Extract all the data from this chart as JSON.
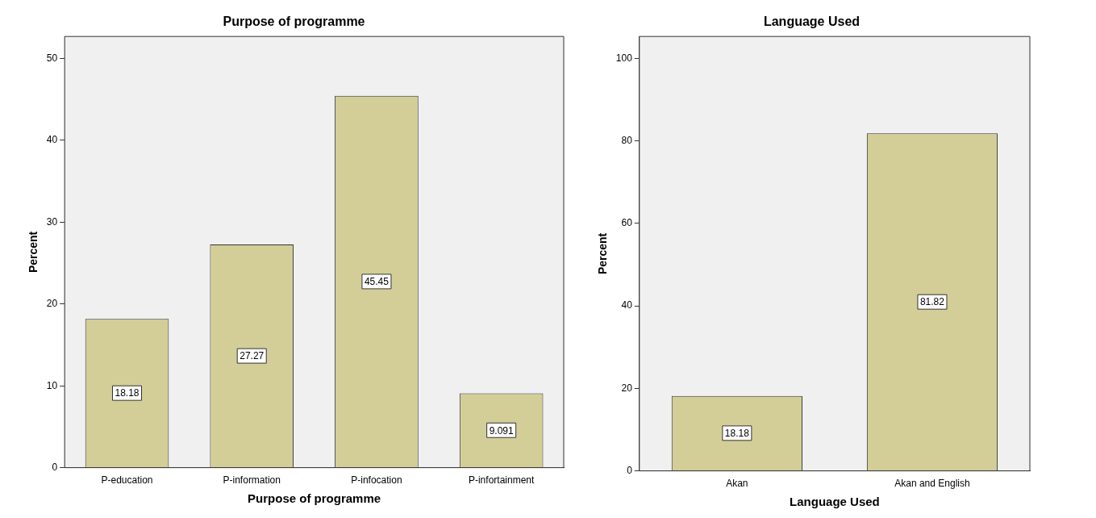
{
  "chart_data": [
    {
      "type": "bar",
      "title": "Purpose of programme",
      "xlabel": "Purpose of programme",
      "ylabel": "Percent",
      "categories": [
        "P-education",
        "P-information",
        "P-infocation",
        "P-infortainment"
      ],
      "values": [
        18.18,
        27.27,
        45.45,
        9.091
      ],
      "color": "#d3ce97",
      "ylim": [
        0,
        52.7
      ],
      "yticks": [
        0,
        10,
        20,
        30,
        40,
        50
      ],
      "grid": false,
      "legend": false,
      "data_labels": true
    },
    {
      "type": "bar",
      "title": "Language Used",
      "xlabel": "Language Used",
      "ylabel": "Percent",
      "categories": [
        "Akan",
        "Akan and English"
      ],
      "values": [
        18.18,
        81.82
      ],
      "color": "#d3ce97",
      "ylim": [
        0,
        105.3
      ],
      "yticks": [
        0,
        20,
        40,
        60,
        80,
        100
      ],
      "grid": false,
      "legend": false,
      "data_labels": true
    }
  ]
}
